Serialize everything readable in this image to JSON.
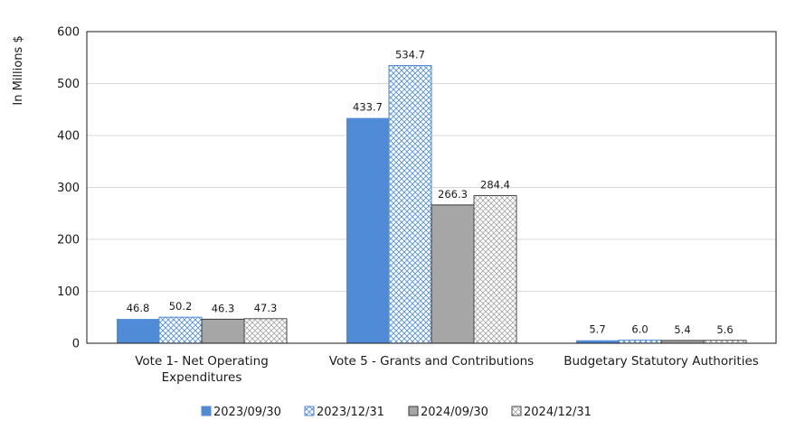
{
  "chart_data": {
    "type": "bar",
    "ylabel": "In Millions $",
    "ylim": [
      0,
      600
    ],
    "yticks": [
      0,
      100,
      200,
      300,
      400,
      500,
      600
    ],
    "categories": [
      [
        "Vote 1- Net Operating",
        "Expenditures"
      ],
      [
        "Vote 5 - Grants and Contributions"
      ],
      [
        "Budgetary Statutory Authorities"
      ]
    ],
    "series": [
      {
        "name": "2023/09/30",
        "values": [
          46.8,
          433.7,
          5.7
        ],
        "labels": [
          "46.8",
          "433.7",
          "5.7"
        ],
        "color": "#4f8bd6",
        "fill": "solid"
      },
      {
        "name": "2023/12/31",
        "values": [
          50.2,
          534.7,
          6.0
        ],
        "labels": [
          "50.2",
          "534.7",
          "6.0"
        ],
        "color": "#4f8bd6",
        "fill": "hatch"
      },
      {
        "name": "2024/09/30",
        "values": [
          46.3,
          266.3,
          5.4
        ],
        "labels": [
          "46.3",
          "266.3",
          "5.4"
        ],
        "color": "#a6a6a6",
        "fill": "solid"
      },
      {
        "name": "2024/12/31",
        "values": [
          47.3,
          284.4,
          5.6
        ],
        "labels": [
          "47.3",
          "284.4",
          "5.6"
        ],
        "color": "#a6a6a6",
        "fill": "hatch"
      }
    ],
    "grid": true,
    "legend": "bottom"
  }
}
